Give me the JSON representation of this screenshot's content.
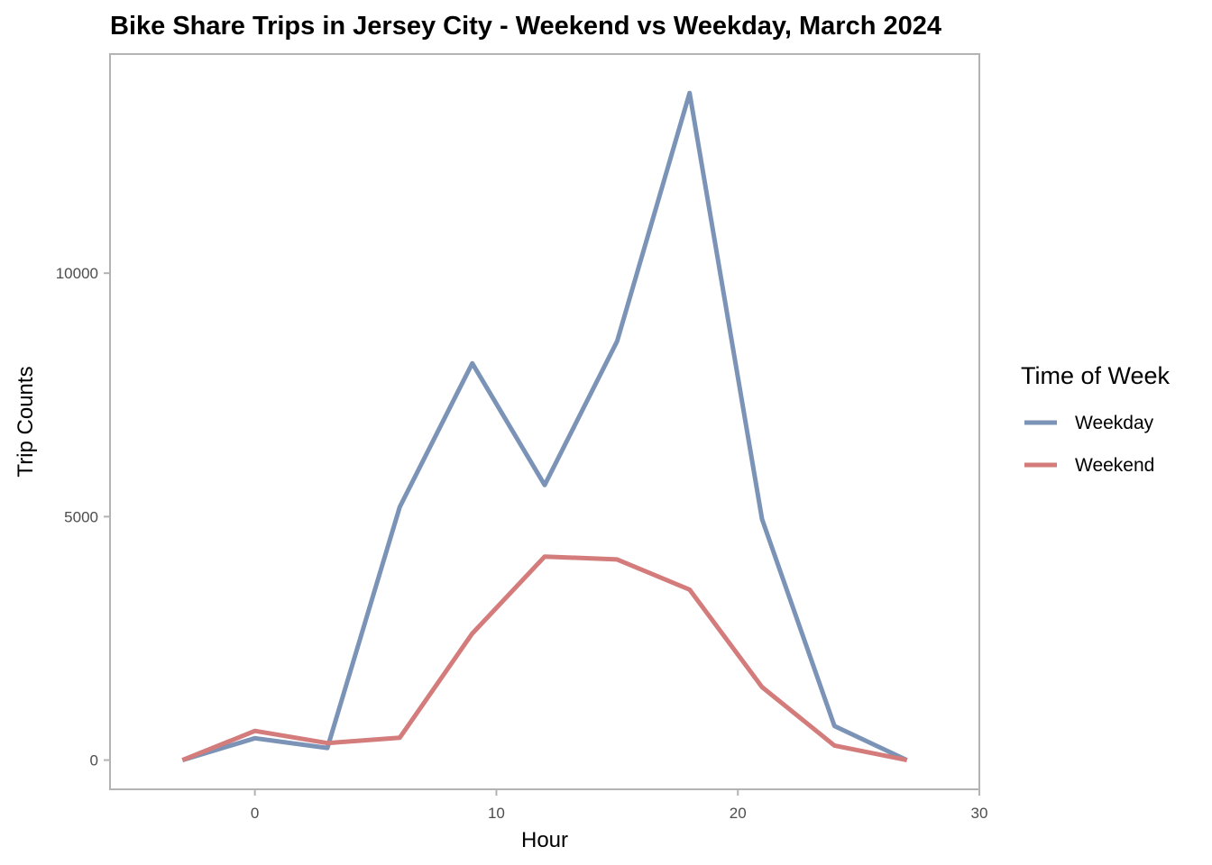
{
  "chart_data": {
    "type": "line",
    "title": "Bike Share Trips in Jersey City - Weekend vs Weekday, March 2024",
    "xlabel": "Hour",
    "ylabel": "Trip Counts",
    "xlim": [
      -6,
      30
    ],
    "ylim": [
      -600,
      14500
    ],
    "xticks": [
      0,
      10,
      20,
      30
    ],
    "yticks": [
      0,
      5000,
      10000
    ],
    "grid": false,
    "legend": {
      "title": "Time of Week",
      "position": "right"
    },
    "x": [
      -3,
      0,
      3,
      6,
      9,
      12,
      15,
      18,
      21,
      24,
      27
    ],
    "series": [
      {
        "name": "Weekday",
        "color": "#7b93b6",
        "values": [
          0,
          450,
          250,
          5200,
          8150,
          5650,
          8600,
          13700,
          4950,
          700,
          0
        ]
      },
      {
        "name": "Weekend",
        "color": "#d47b7b",
        "values": [
          0,
          600,
          350,
          460,
          2600,
          4180,
          4120,
          3500,
          1500,
          300,
          0
        ]
      }
    ]
  }
}
